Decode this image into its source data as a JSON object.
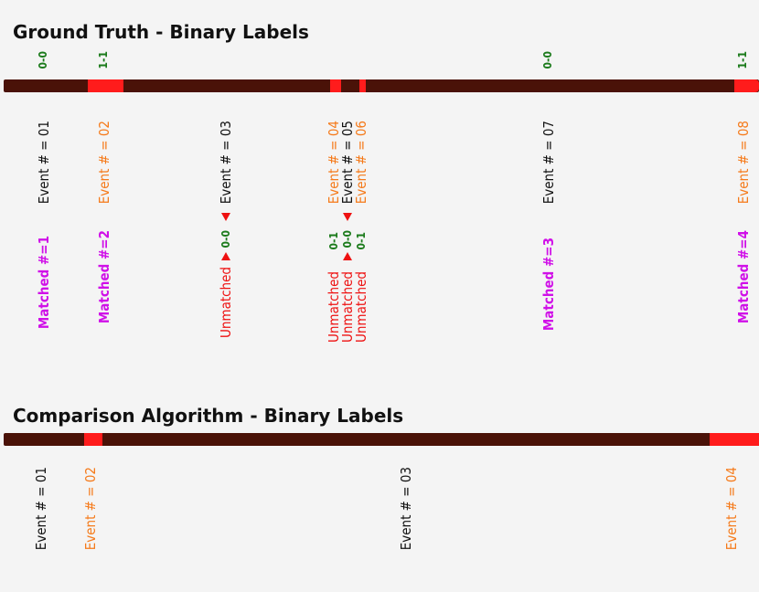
{
  "ground_truth": {
    "title": "Ground Truth - Binary Labels",
    "codes": [
      "0-0",
      "1-1",
      "0-0",
      "1-1"
    ],
    "events": [
      "Event # = 01",
      "Event # = 02",
      "Event # = 03",
      "Event # = 04",
      "Event # = 05",
      "Event # = 06",
      "Event # = 07",
      "Event # = 08"
    ],
    "matched": [
      "Matched #=1",
      "Matched #=2",
      "Matched #=3",
      "Matched #=4"
    ],
    "unmatched": [
      {
        "label": "Unmatched",
        "code": "0-0"
      },
      {
        "label": "Unmatched",
        "code": "0-1"
      },
      {
        "label": "Unmatched",
        "code": "0-0"
      },
      {
        "label": "Unmatched",
        "code": "0-1"
      }
    ]
  },
  "comparison": {
    "title": "Comparison Algorithm - Binary Labels",
    "events": [
      "Event # = 01",
      "Event # = 02",
      "Event # = 03",
      "Event # = 04"
    ]
  },
  "colors": {
    "background": "#4a1208",
    "event_segment": "#ff1c1c",
    "code": "#1a7a1a",
    "matched": "#d010e8",
    "unmatched": "#ee1111",
    "event_odd": "#111111",
    "event_even": "#f57a1a"
  }
}
